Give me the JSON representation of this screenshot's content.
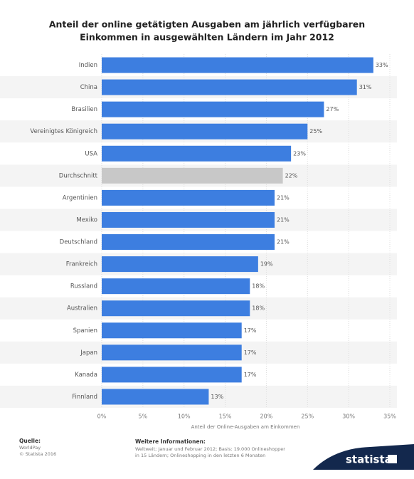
{
  "chart_data": {
    "type": "hbar",
    "title": [
      "Anteil der online getätigten Ausgaben am jährlich verfügbaren",
      "Einkommen in ausgewählten Ländern im Jahr 2012"
    ],
    "categories": [
      "Indien",
      "China",
      "Brasilien",
      "Vereinigtes Königreich",
      "USA",
      "Durchschnitt",
      "Argentinien",
      "Mexiko",
      "Deutschland",
      "Frankreich",
      "Russland",
      "Australien",
      "Spanien",
      "Japan",
      "Kanada",
      "Finnland"
    ],
    "values": [
      33,
      31,
      27,
      25,
      23,
      22,
      21,
      21,
      21,
      19,
      18,
      18,
      17,
      17,
      17,
      13
    ],
    "value_labels": [
      "33%",
      "31%",
      "27%",
      "25%",
      "23%",
      "22%",
      "21%",
      "21%",
      "21%",
      "19%",
      "18%",
      "18%",
      "17%",
      "17%",
      "17%",
      "13%"
    ],
    "colors": [
      "#3d7ee0",
      "#3d7ee0",
      "#3d7ee0",
      "#3d7ee0",
      "#3d7ee0",
      "#c8c8c8",
      "#3d7ee0",
      "#3d7ee0",
      "#3d7ee0",
      "#3d7ee0",
      "#3d7ee0",
      "#3d7ee0",
      "#3d7ee0",
      "#3d7ee0",
      "#3d7ee0",
      "#3d7ee0"
    ],
    "xlim": [
      0,
      35
    ],
    "xticks": [
      {
        "value": 0,
        "label": "0%"
      },
      {
        "value": 5,
        "label": "5%"
      },
      {
        "value": 10,
        "label": "10%"
      },
      {
        "value": 15,
        "label": "15%"
      },
      {
        "value": 20,
        "label": "20%"
      },
      {
        "value": 25,
        "label": "25%"
      },
      {
        "value": 30,
        "label": "30%"
      },
      {
        "value": 35,
        "label": "35%"
      }
    ],
    "xlabel": "Anteil der Online-Ausgaben am Einkommen",
    "grid": true,
    "source_label": "Quelle:",
    "source": "WorldPay",
    "copyright": "© Statista 2016",
    "info_label": "Weitere Informationen:",
    "info_lines": [
      "Weltweit; Januar und Februar 2012; Basis: 19.000 Onlineshopper",
      "in 15 Ländern; Onlineshopping in den letzten 6 Monaten"
    ],
    "brand": "statista"
  }
}
